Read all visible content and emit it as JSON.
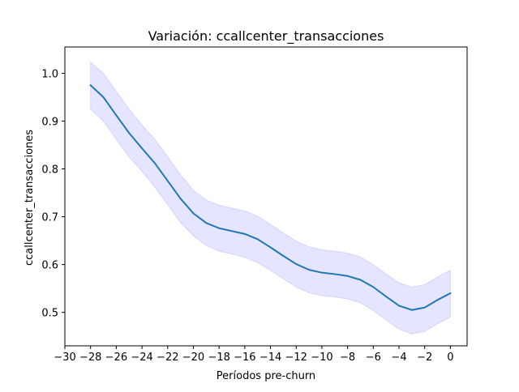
{
  "chart_data": {
    "type": "line",
    "title": "Variación: ccallcenter_transacciones",
    "xlabel": "Períodos pre-churn",
    "ylabel": "ccallcenter_transacciones",
    "xlim": [
      -30,
      1.3
    ],
    "ylim": [
      0.43,
      1.055
    ],
    "xticks": [
      -30,
      -28,
      -26,
      -24,
      -22,
      -20,
      -18,
      -16,
      -14,
      -12,
      -10,
      -8,
      -6,
      -4,
      -2,
      0
    ],
    "xtick_labels": [
      "−30",
      "−28",
      "−26",
      "−24",
      "−22",
      "−20",
      "−18",
      "−16",
      "−14",
      "−12",
      "−10",
      "−8",
      "−6",
      "−4",
      "−2",
      "0"
    ],
    "yticks": [
      0.5,
      0.6,
      0.7,
      0.8,
      0.9,
      1.0
    ],
    "ytick_labels": [
      "0.5",
      "0.6",
      "0.7",
      "0.8",
      "0.9",
      "1.0"
    ],
    "grid": false,
    "colors": {
      "line": "#1f77b4",
      "band": "#0000ff"
    },
    "series": [
      {
        "x": [
          -28,
          -27,
          -26,
          -25,
          -24,
          -23,
          -22,
          -21,
          -20,
          -19,
          -18,
          -17,
          -16,
          -15,
          -14,
          -13,
          -12,
          -11,
          -10,
          -9,
          -8,
          -7,
          -6,
          -5,
          -4,
          -3,
          -2,
          -1,
          0
        ],
        "y": [
          0.975,
          0.95,
          0.912,
          0.875,
          0.843,
          0.812,
          0.775,
          0.738,
          0.707,
          0.687,
          0.676,
          0.67,
          0.664,
          0.653,
          0.636,
          0.618,
          0.601,
          0.589,
          0.583,
          0.58,
          0.576,
          0.568,
          0.553,
          0.533,
          0.514,
          0.505,
          0.51,
          0.526,
          0.54
        ],
        "lower": [
          0.925,
          0.9,
          0.862,
          0.825,
          0.795,
          0.762,
          0.725,
          0.688,
          0.66,
          0.64,
          0.628,
          0.622,
          0.615,
          0.604,
          0.588,
          0.57,
          0.553,
          0.541,
          0.535,
          0.532,
          0.528,
          0.52,
          0.504,
          0.484,
          0.465,
          0.455,
          0.46,
          0.476,
          0.49
        ],
        "upper": [
          1.023,
          1.0,
          0.962,
          0.925,
          0.892,
          0.862,
          0.825,
          0.788,
          0.755,
          0.735,
          0.724,
          0.718,
          0.712,
          0.701,
          0.684,
          0.666,
          0.649,
          0.637,
          0.631,
          0.628,
          0.624,
          0.616,
          0.6,
          0.58,
          0.562,
          0.553,
          0.558,
          0.574,
          0.588
        ]
      }
    ]
  }
}
